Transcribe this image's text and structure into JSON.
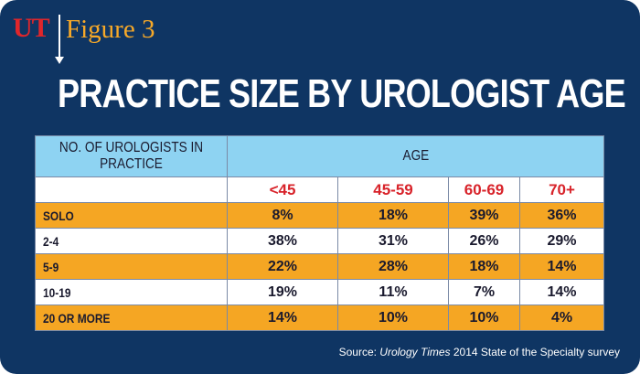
{
  "logo": {
    "brand": "UT",
    "figure_label": "Figure 3"
  },
  "title": "PRACTICE SIZE BY UROLOGIST AGE",
  "source": {
    "prefix": "Source: ",
    "publication": "Urology Times",
    "suffix": " 2014 State of the Specialty survey"
  },
  "colors": {
    "background": "#0f3563",
    "header": "#8ed3f2",
    "orange_row": "#f5a623",
    "age_label": "#d8232a",
    "brand_red": "#e0262b",
    "figure_orange": "#f7a928"
  },
  "chart_data": {
    "type": "table",
    "title": "PRACTICE SIZE BY UROLOGIST AGE",
    "row_header": "NO. OF UROLOGISTS IN PRACTICE",
    "column_group_header": "AGE",
    "columns": [
      "<45",
      "45-59",
      "60-69",
      "70+"
    ],
    "rows": [
      {
        "label": "SOLO",
        "values": [
          "8%",
          "18%",
          "39%",
          "36%"
        ]
      },
      {
        "label": "2-4",
        "values": [
          "38%",
          "31%",
          "26%",
          "29%"
        ]
      },
      {
        "label": "5-9",
        "values": [
          "22%",
          "28%",
          "18%",
          "14%"
        ]
      },
      {
        "label": "10-19",
        "values": [
          "19%",
          "11%",
          "7%",
          "14%"
        ]
      },
      {
        "label": "20 OR MORE",
        "values": [
          "14%",
          "10%",
          "10%",
          "4%"
        ]
      }
    ]
  }
}
